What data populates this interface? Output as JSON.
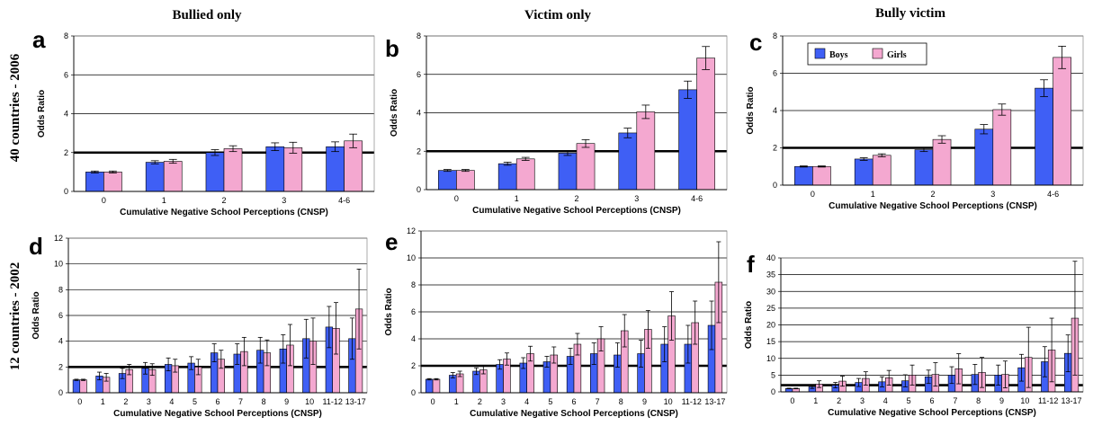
{
  "colors": {
    "boys": "#3f5ff5",
    "girls": "#f4a8d0",
    "grid": "#000000",
    "reference_line": "#000000"
  },
  "columns": [
    "Bullied only",
    "Victim only",
    "Bully victim"
  ],
  "rows": [
    "40 countries - 2006",
    "12 countries - 2002"
  ],
  "chart_data": [
    {
      "id": "a",
      "type": "bar",
      "xlabel": "Cumulative Negative School Perceptions (CNSP)",
      "ylabel": "Odds Ratio",
      "ylim": [
        0,
        8
      ],
      "yticks": [
        0,
        2,
        4,
        6,
        8
      ],
      "grid": true,
      "reference_line": 2,
      "categories": [
        "0",
        "1",
        "2",
        "3",
        "4-6"
      ],
      "series": [
        {
          "name": "Boys",
          "values": [
            1.0,
            1.5,
            2.0,
            2.3,
            2.3
          ],
          "err": [
            0.05,
            0.08,
            0.15,
            0.2,
            0.25
          ]
        },
        {
          "name": "Girls",
          "values": [
            1.0,
            1.55,
            2.2,
            2.25,
            2.6
          ],
          "err": [
            0.05,
            0.1,
            0.15,
            0.28,
            0.35
          ]
        }
      ]
    },
    {
      "id": "b",
      "type": "bar",
      "xlabel": "Cumulative Negative School Perceptions (CNSP)",
      "ylabel": "Odds Ratio",
      "ylim": [
        0,
        8
      ],
      "yticks": [
        0,
        2,
        4,
        6,
        8
      ],
      "grid": true,
      "reference_line": 2,
      "categories": [
        "0",
        "1",
        "2",
        "3",
        "4-6"
      ],
      "series": [
        {
          "name": "Boys",
          "values": [
            1.0,
            1.35,
            1.9,
            2.95,
            5.2
          ],
          "err": [
            0.05,
            0.08,
            0.12,
            0.25,
            0.45
          ]
        },
        {
          "name": "Girls",
          "values": [
            1.0,
            1.6,
            2.4,
            4.05,
            6.85
          ],
          "err": [
            0.05,
            0.08,
            0.2,
            0.35,
            0.6
          ]
        }
      ]
    },
    {
      "id": "c",
      "type": "bar",
      "xlabel": "Cumulative Negative School Perceptions (CNSP)",
      "ylabel": "Odds Ratio",
      "ylim": [
        0,
        8
      ],
      "yticks": [
        0,
        2,
        4,
        6,
        8
      ],
      "grid": true,
      "reference_line": 2,
      "legend": "top-left",
      "categories": [
        "0",
        "1",
        "2",
        "3",
        "4-6"
      ],
      "series": [
        {
          "name": "Boys",
          "values": [
            1.0,
            1.4,
            1.9,
            3.0,
            5.2
          ],
          "err": [
            0.03,
            0.07,
            0.1,
            0.25,
            0.45
          ]
        },
        {
          "name": "Girls",
          "values": [
            1.0,
            1.6,
            2.45,
            4.05,
            6.85
          ],
          "err": [
            0.03,
            0.08,
            0.2,
            0.3,
            0.6
          ]
        }
      ]
    },
    {
      "id": "d",
      "type": "bar",
      "xlabel": "Cumulative Negative School Perceptions (CNSP)",
      "ylabel": "Odds Ratio",
      "ylim": [
        0,
        12
      ],
      "yticks": [
        0,
        2,
        4,
        6,
        8,
        10,
        12
      ],
      "grid": true,
      "reference_line": 2,
      "categories": [
        "0",
        "1",
        "2",
        "3",
        "4",
        "5",
        "6",
        "7",
        "8",
        "9",
        "10",
        "11-12",
        "13-17"
      ],
      "series": [
        {
          "name": "Boys",
          "values": [
            1.0,
            1.3,
            1.5,
            1.9,
            2.2,
            2.3,
            3.1,
            3.0,
            3.3,
            3.4,
            4.2,
            5.1,
            4.2
          ],
          "err": [
            0.05,
            0.3,
            0.4,
            0.45,
            0.5,
            0.5,
            0.7,
            0.8,
            1.0,
            1.1,
            1.5,
            1.6,
            1.6
          ]
        },
        {
          "name": "Girls",
          "values": [
            1.0,
            1.2,
            1.8,
            1.8,
            2.1,
            2.0,
            2.6,
            3.2,
            3.1,
            3.7,
            4.0,
            5.0,
            6.5
          ],
          "err": [
            0.05,
            0.3,
            0.4,
            0.45,
            0.5,
            0.6,
            0.7,
            1.1,
            1.0,
            1.6,
            1.8,
            2.0,
            3.1
          ]
        }
      ]
    },
    {
      "id": "e",
      "type": "bar",
      "xlabel": "Cumulative Negative School Perceptions (CNSP)",
      "ylabel": "Odds Ratio",
      "ylim": [
        0,
        12
      ],
      "yticks": [
        0,
        2,
        4,
        6,
        8,
        10,
        12
      ],
      "grid": true,
      "reference_line": 2,
      "categories": [
        "0",
        "1",
        "2",
        "3",
        "4",
        "5",
        "6",
        "7",
        "8",
        "9",
        "10",
        "11-12",
        "13-17"
      ],
      "series": [
        {
          "name": "Boys",
          "values": [
            1.0,
            1.3,
            1.6,
            2.1,
            2.2,
            2.3,
            2.7,
            2.9,
            2.8,
            2.9,
            3.6,
            3.6,
            5.0
          ],
          "err": [
            0.05,
            0.2,
            0.25,
            0.35,
            0.4,
            0.4,
            0.6,
            0.8,
            0.9,
            1.0,
            1.3,
            1.4,
            1.8
          ]
        },
        {
          "name": "Girls",
          "values": [
            1.0,
            1.4,
            1.7,
            2.5,
            2.9,
            2.8,
            3.6,
            4.0,
            4.6,
            4.7,
            5.7,
            5.2,
            8.2
          ],
          "err": [
            0.05,
            0.2,
            0.3,
            0.45,
            0.55,
            0.6,
            0.8,
            0.9,
            1.2,
            1.4,
            1.8,
            1.6,
            3.0
          ]
        }
      ]
    },
    {
      "id": "f",
      "type": "bar",
      "xlabel": "Cumulative Negative School Perceptions (CNSP)",
      "ylabel": "Odds Ratio",
      "ylim": [
        0,
        40
      ],
      "yticks": [
        0,
        5,
        10,
        15,
        20,
        25,
        30,
        35,
        40
      ],
      "grid": true,
      "reference_line": 2,
      "categories": [
        "0",
        "1",
        "2",
        "3",
        "4",
        "5",
        "6",
        "7",
        "8",
        "9",
        "10",
        "11-12",
        "13-17"
      ],
      "series": [
        {
          "name": "Boys",
          "values": [
            1.0,
            1.5,
            2.0,
            2.8,
            3.0,
            3.3,
            4.5,
            5.0,
            5.2,
            5.0,
            7.2,
            9.0,
            11.5
          ],
          "err": [
            0.1,
            0.5,
            0.8,
            1.2,
            1.5,
            1.8,
            2.0,
            2.5,
            3.0,
            3.0,
            4.0,
            4.5,
            5.5
          ]
        },
        {
          "name": "Girls",
          "values": [
            1.0,
            2.3,
            3.2,
            4.0,
            4.2,
            5.0,
            5.2,
            6.9,
            5.8,
            5.2,
            10.3,
            12.5,
            22.0
          ],
          "err": [
            0.1,
            1.0,
            1.5,
            2.0,
            2.2,
            3.0,
            3.5,
            4.5,
            4.5,
            4.0,
            9.0,
            9.5,
            17.0
          ]
        }
      ]
    }
  ]
}
